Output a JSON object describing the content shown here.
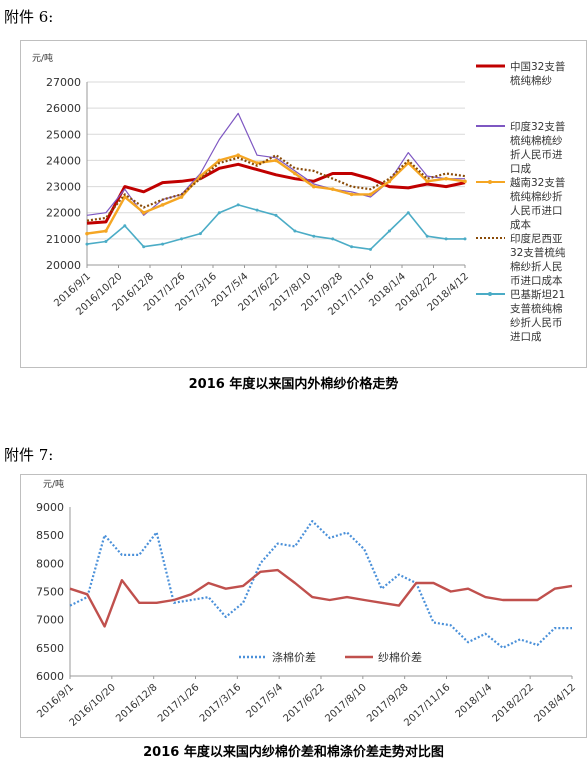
{
  "attachments": [
    "附件 6:",
    "附件 7:"
  ],
  "captions": [
    "2016 年度以来国内外棉纱价格走势",
    "2016 年度以来国内纱棉价差和棉涤价差走势对比图"
  ],
  "chart_data": [
    {
      "type": "line",
      "unit_label": "元/吨",
      "ylim": [
        20000,
        27000
      ],
      "yticks": [
        "20000",
        "21000",
        "22000",
        "23000",
        "24000",
        "25000",
        "26000",
        "27000"
      ],
      "x_tick_labels": [
        "2016/9/1",
        "2016/10/20",
        "2016/12/8",
        "2017/1/26",
        "2017/3/16",
        "2017/5/4",
        "2017/6/22",
        "2017/8/10",
        "2017/9/28",
        "2017/11/16",
        "2018/1/4",
        "2018/2/22",
        "2018/4/12"
      ],
      "legend_position": "right",
      "series": [
        {
          "name": "中国32支普梳纯棉纱",
          "color": "#c00000",
          "style": "solid-thick",
          "values": [
            21600,
            21650,
            23000,
            22800,
            23150,
            23200,
            23300,
            23700,
            23850,
            23650,
            23450,
            23300,
            23200,
            23500,
            23500,
            23300,
            23000,
            22950,
            23100,
            23000,
            23150
          ]
        },
        {
          "name": "印度32支普梳纯棉梳纱折人民币进口成本",
          "color": "#7e57c2",
          "style": "solid-thin",
          "values": [
            21900,
            22000,
            22900,
            21900,
            22500,
            22700,
            23500,
            24800,
            25800,
            24200,
            24100,
            23600,
            23100,
            22900,
            22800,
            22600,
            23200,
            24300,
            23400,
            23300,
            23300
          ]
        },
        {
          "name": "越南32支普梳纯棉纱折人民币进口成本",
          "color": "#f5a623",
          "style": "solid-markers",
          "values": [
            21200,
            21300,
            22600,
            22000,
            22300,
            22600,
            23400,
            24000,
            24200,
            23900,
            24000,
            23500,
            23000,
            22900,
            22700,
            22700,
            23200,
            23900,
            23200,
            23300,
            23200
          ]
        },
        {
          "name": "印度尼西亚32支普梳纯棉纱折人民币进口成本",
          "color": "#8a4b08",
          "style": "dotted",
          "values": [
            21700,
            21800,
            22700,
            22200,
            22500,
            22700,
            23300,
            23900,
            24100,
            23800,
            24200,
            23700,
            23600,
            23300,
            23000,
            22900,
            23300,
            24000,
            23300,
            23500,
            23400
          ]
        },
        {
          "name": "巴基斯坦21支普梳纯棉纱折人民币进口成本",
          "color": "#4bacc6",
          "style": "solid-markers-small",
          "values": [
            20800,
            20900,
            21500,
            20700,
            20800,
            21000,
            21200,
            22000,
            22300,
            22100,
            21900,
            21300,
            21100,
            21000,
            20700,
            20600,
            21300,
            22000,
            21100,
            21000,
            21000
          ]
        }
      ]
    },
    {
      "type": "line",
      "unit_label": "元/吨",
      "ylim": [
        6000,
        9000
      ],
      "yticks": [
        "6000",
        "6500",
        "7000",
        "7500",
        "8000",
        "8500",
        "9000"
      ],
      "x_tick_labels": [
        "2016/9/1",
        "2016/10/20",
        "2016/12/8",
        "2017/1/26",
        "2017/3/16",
        "2017/5/4",
        "2017/6/22",
        "2017/8/10",
        "2017/9/28",
        "2017/11/16",
        "2018/1/4",
        "2018/2/22",
        "2018/4/12"
      ],
      "legend_position": "bottom-left",
      "series": [
        {
          "name": "涤棉价差",
          "color": "#4a90d9",
          "style": "dotted",
          "values": [
            7250,
            7400,
            8500,
            8150,
            8150,
            8550,
            7300,
            7350,
            7400,
            7050,
            7300,
            8000,
            8350,
            8300,
            8750,
            8450,
            8550,
            8250,
            7550,
            7800,
            7650,
            6950,
            6900,
            6600,
            6750,
            6500,
            6650,
            6550,
            6850,
            6850
          ]
        },
        {
          "name": "纱棉价差",
          "color": "#c0504d",
          "style": "solid",
          "values": [
            7550,
            7450,
            6880,
            7700,
            7300,
            7300,
            7350,
            7450,
            7650,
            7550,
            7600,
            7850,
            7880,
            7650,
            7400,
            7350,
            7400,
            7350,
            7300,
            7250,
            7650,
            7650,
            7500,
            7550,
            7400,
            7350,
            7350,
            7350,
            7550,
            7600
          ]
        }
      ]
    }
  ]
}
